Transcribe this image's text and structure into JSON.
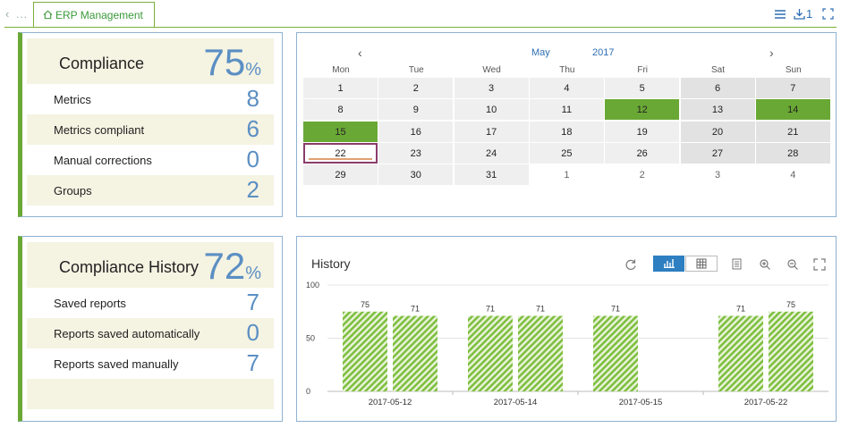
{
  "nav": {
    "back_icon": "chevron-left-icon",
    "ellipsis": "...",
    "tab_label": "ERP Management",
    "tab_icon": "home-icon"
  },
  "toolbar": {
    "menu_icon": "hamburger-menu-icon",
    "download_count": "1",
    "download_icon": "download-icon",
    "expand_icon": "expand-icon"
  },
  "compliance": {
    "title": "Compliance",
    "percent": "75",
    "percent_sign": "%",
    "rows": [
      {
        "label": "Metrics",
        "value": "8"
      },
      {
        "label": "Metrics compliant",
        "value": "6"
      },
      {
        "label": "Manual corrections",
        "value": "0"
      },
      {
        "label": "Groups",
        "value": "2"
      }
    ]
  },
  "calendar": {
    "prev": "‹",
    "next": "›",
    "month": "May",
    "year": "2017",
    "weekdays": [
      "Mon",
      "Tue",
      "Wed",
      "Thu",
      "Fri",
      "Sat",
      "Sun"
    ],
    "weeks": [
      [
        "1",
        "2",
        "3",
        "4",
        "5",
        "6",
        "7"
      ],
      [
        "8",
        "9",
        "10",
        "11",
        "12",
        "13",
        "14"
      ],
      [
        "15",
        "16",
        "17",
        "18",
        "19",
        "20",
        "21"
      ],
      [
        "22",
        "23",
        "24",
        "25",
        "26",
        "27",
        "28"
      ],
      [
        "29",
        "30",
        "31",
        "1",
        "2",
        "3",
        "4"
      ]
    ],
    "highlighted_days": [
      "12",
      "14",
      "15"
    ],
    "selected_day": "22",
    "highlight_color": "#6aa835"
  },
  "history_kpi": {
    "title": "Compliance History",
    "percent": "72",
    "percent_sign": "%",
    "rows": [
      {
        "label": "Saved reports",
        "value": "7"
      },
      {
        "label": "Reports saved automatically",
        "value": "0"
      },
      {
        "label": "Reports saved manually",
        "value": "7"
      }
    ]
  },
  "history_chart": {
    "title": "History",
    "tools": [
      "refresh-icon",
      "bar-chart-icon",
      "table-grid-icon",
      "list-icon",
      "zoom-in-icon",
      "zoom-out-icon",
      "fullscreen-icon"
    ]
  },
  "chart_data": {
    "type": "bar",
    "title": "History",
    "categories": [
      "2017-05-12",
      "2017-05-14",
      "2017-05-15",
      "2017-05-22"
    ],
    "bars": [
      {
        "category": "2017-05-12",
        "value": 75
      },
      {
        "category": "2017-05-12",
        "value": 71
      },
      {
        "category": "2017-05-14",
        "value": 71
      },
      {
        "category": "2017-05-14",
        "value": 71
      },
      {
        "category": "2017-05-15",
        "value": 71
      },
      {
        "category": "2017-05-22",
        "value": 71
      },
      {
        "category": "2017-05-22",
        "value": 75
      }
    ],
    "ylim": [
      0,
      100
    ],
    "yticks": [
      0,
      50,
      100
    ],
    "grid": true,
    "bar_color": "#7fbf3f"
  }
}
